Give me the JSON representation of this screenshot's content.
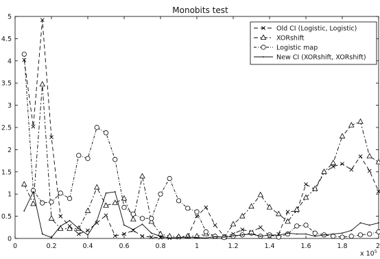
{
  "chart_data": {
    "type": "line",
    "title": "Monobits test",
    "xlabel": "",
    "ylabel": "",
    "x_exponent_label": "x 10",
    "x_exponent_power": "5",
    "xlim": [
      0,
      2
    ],
    "ylim": [
      0,
      5
    ],
    "x_ticks": [
      0,
      0.2,
      0.4,
      0.6,
      0.8,
      1,
      1.2,
      1.4,
      1.6,
      1.8,
      2
    ],
    "x_tick_labels": [
      "0",
      "0.2",
      "0.4",
      "0.6",
      "0.8",
      "1",
      "1.2",
      "1.4",
      "1.6",
      "1.8",
      "2"
    ],
    "y_ticks": [
      0,
      0.5,
      1,
      1.5,
      2,
      2.5,
      3,
      3.5,
      4,
      4.5,
      5
    ],
    "y_tick_labels": [
      "0",
      "0.5",
      "1",
      "1.5",
      "2",
      "2.5",
      "3",
      "3.5",
      "4",
      "4.5",
      "5"
    ],
    "grid": false,
    "legend_position": "top-right",
    "series": [
      {
        "name": "Old CI (Logistic, Logistic)",
        "dash": "6,4",
        "marker": "x",
        "x": [
          0.05,
          0.1,
          0.15,
          0.2,
          0.25,
          0.3,
          0.35,
          0.4,
          0.45,
          0.5,
          0.55,
          0.6,
          0.65,
          0.7,
          0.75,
          0.8,
          0.85,
          0.9,
          0.95,
          1.0,
          1.05,
          1.1,
          1.15,
          1.2,
          1.25,
          1.3,
          1.35,
          1.4,
          1.45,
          1.5,
          1.55,
          1.6,
          1.65,
          1.7,
          1.75,
          1.8,
          1.85,
          1.9,
          1.95,
          2.0
        ],
        "y": [
          4.02,
          2.52,
          4.92,
          2.28,
          0.5,
          0.28,
          0.1,
          0.18,
          0.35,
          0.52,
          0.06,
          0.1,
          0.18,
          0.05,
          0.03,
          0.02,
          0.01,
          0.02,
          0.04,
          0.5,
          0.7,
          0.3,
          0.05,
          0.1,
          0.2,
          0.15,
          0.25,
          0.05,
          0.1,
          0.6,
          0.62,
          1.22,
          1.1,
          1.48,
          1.62,
          1.68,
          1.55,
          1.85,
          1.52,
          1.06
        ]
      },
      {
        "name": "XORshift",
        "dash": "6,3,2,3",
        "marker": "triangle",
        "x": [
          0.05,
          0.1,
          0.15,
          0.2,
          0.25,
          0.3,
          0.35,
          0.4,
          0.45,
          0.5,
          0.55,
          0.6,
          0.65,
          0.7,
          0.75,
          0.8,
          0.85,
          0.9,
          0.95,
          1.0,
          1.05,
          1.1,
          1.15,
          1.2,
          1.25,
          1.3,
          1.35,
          1.4,
          1.45,
          1.5,
          1.55,
          1.6,
          1.65,
          1.7,
          1.75,
          1.8,
          1.85,
          1.9,
          1.95,
          2.0
        ],
        "y": [
          1.22,
          0.78,
          3.47,
          0.45,
          0.22,
          0.22,
          0.22,
          0.62,
          1.15,
          0.74,
          0.8,
          0.9,
          0.43,
          1.4,
          0.38,
          0.1,
          0.05,
          0.04,
          0.05,
          0.05,
          0.1,
          0.04,
          0.03,
          0.32,
          0.5,
          0.72,
          0.98,
          0.7,
          0.55,
          0.38,
          0.65,
          0.92,
          1.12,
          1.5,
          1.7,
          2.3,
          2.55,
          2.63,
          1.85,
          1.72
        ]
      },
      {
        "name": "Logistic map",
        "dash": "4,2,1,2",
        "marker": "circle",
        "x": [
          0.05,
          0.1,
          0.15,
          0.2,
          0.25,
          0.3,
          0.35,
          0.4,
          0.45,
          0.5,
          0.55,
          0.6,
          0.65,
          0.7,
          0.75,
          0.8,
          0.85,
          0.9,
          0.95,
          1.0,
          1.05,
          1.1,
          1.15,
          1.2,
          1.25,
          1.3,
          1.35,
          1.4,
          1.45,
          1.5,
          1.55,
          1.6,
          1.65,
          1.7,
          1.75,
          1.8,
          1.85,
          1.9,
          1.95,
          2.0
        ],
        "y": [
          4.15,
          1.08,
          0.8,
          0.82,
          1.02,
          0.9,
          1.87,
          1.8,
          2.5,
          2.38,
          1.78,
          0.7,
          0.55,
          0.45,
          0.45,
          1.0,
          1.35,
          0.85,
          0.68,
          0.6,
          0.15,
          0.05,
          0.02,
          0.05,
          0.08,
          0.12,
          0.05,
          0.08,
          0.03,
          0.1,
          0.28,
          0.3,
          0.12,
          0.08,
          0.05,
          0.03,
          0.05,
          0.08,
          0.1,
          0.15
        ]
      },
      {
        "name": "New CI (XORshift, XORshift)",
        "dash": "",
        "marker": "dot",
        "x": [
          0.05,
          0.1,
          0.15,
          0.2,
          0.25,
          0.3,
          0.35,
          0.4,
          0.45,
          0.5,
          0.55,
          0.6,
          0.65,
          0.7,
          0.75,
          0.8,
          0.85,
          0.9,
          0.95,
          1.0,
          1.05,
          1.1,
          1.15,
          1.2,
          1.25,
          1.3,
          1.35,
          1.4,
          1.45,
          1.5,
          1.55,
          1.6,
          1.65,
          1.7,
          1.75,
          1.8,
          1.85,
          1.9,
          1.95,
          2.0
        ],
        "y": [
          0.62,
          1.05,
          0.1,
          0.02,
          0.28,
          0.4,
          0.22,
          0.08,
          0.4,
          1.02,
          1.05,
          0.3,
          0.2,
          0.32,
          0.12,
          0.05,
          0.01,
          0.02,
          0.03,
          0.02,
          0.01,
          0.04,
          0.03,
          0.06,
          0.08,
          0.1,
          0.05,
          0.08,
          0.07,
          0.12,
          0.1,
          0.1,
          0.05,
          0.08,
          0.1,
          0.12,
          0.18,
          0.35,
          0.3,
          0.35
        ]
      }
    ]
  }
}
